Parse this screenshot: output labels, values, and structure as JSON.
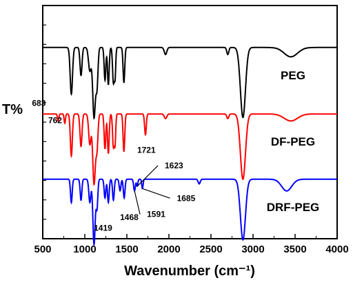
{
  "chart_data": {
    "type": "line",
    "xlabel": "Wavenumber (cm⁻¹)",
    "ylabel": "T%",
    "xlim": [
      500,
      4000
    ],
    "xticks": [
      "500",
      "1000",
      "1500",
      "2000",
      "2500",
      "3000",
      "3500",
      "4000"
    ],
    "grid": false,
    "legend": "none",
    "series": [
      {
        "name": "PEG",
        "color": "#000000",
        "baseline": 0.82,
        "peaks": [
          [
            840,
            0.2,
            14
          ],
          [
            955,
            0.12,
            12
          ],
          [
            1060,
            0.1,
            16
          ],
          [
            1110,
            0.3,
            16
          ],
          [
            1145,
            0.16,
            12
          ],
          [
            1240,
            0.14,
            10
          ],
          [
            1280,
            0.16,
            10
          ],
          [
            1340,
            0.15,
            10
          ],
          [
            1360,
            0.12,
            8
          ],
          [
            1465,
            0.15,
            10
          ],
          [
            1960,
            0.03,
            15
          ],
          [
            2700,
            0.03,
            12
          ],
          [
            2880,
            0.3,
            30
          ],
          [
            3450,
            0.04,
            80
          ]
        ]
      },
      {
        "name": "DF-PEG",
        "color": "#ff0000",
        "baseline": 0.535,
        "peaks": [
          [
            683,
            0.03,
            8
          ],
          [
            762,
            0.04,
            8
          ],
          [
            840,
            0.18,
            12
          ],
          [
            955,
            0.14,
            12
          ],
          [
            1060,
            0.13,
            14
          ],
          [
            1110,
            0.3,
            16
          ],
          [
            1145,
            0.14,
            12
          ],
          [
            1240,
            0.15,
            10
          ],
          [
            1280,
            0.17,
            10
          ],
          [
            1340,
            0.14,
            10
          ],
          [
            1360,
            0.12,
            8
          ],
          [
            1465,
            0.16,
            10
          ],
          [
            1721,
            0.09,
            10
          ],
          [
            1960,
            0.02,
            15
          ],
          [
            2700,
            0.02,
            12
          ],
          [
            2880,
            0.28,
            30
          ],
          [
            3450,
            0.03,
            80
          ]
        ]
      },
      {
        "name": "DRF-PEG",
        "color": "#0000ff",
        "baseline": 0.255,
        "peaks": [
          [
            840,
            0.1,
            10
          ],
          [
            955,
            0.09,
            10
          ],
          [
            1060,
            0.1,
            12
          ],
          [
            1110,
            0.28,
            14
          ],
          [
            1145,
            0.12,
            10
          ],
          [
            1240,
            0.08,
            10
          ],
          [
            1280,
            0.1,
            10
          ],
          [
            1340,
            0.09,
            10
          ],
          [
            1419,
            0.05,
            10
          ],
          [
            1468,
            0.08,
            10
          ],
          [
            1591,
            0.05,
            10
          ],
          [
            1623,
            0.03,
            8
          ],
          [
            1685,
            0.04,
            8
          ],
          [
            2360,
            0.02,
            12
          ],
          [
            2880,
            0.26,
            30
          ],
          [
            3400,
            0.05,
            60
          ]
        ]
      }
    ],
    "labels": {
      "PEG": "PEG",
      "DF-PEG": "DF-PEG",
      "DRF-PEG": "DRF-PEG"
    },
    "annotations": [
      {
        "text": "683",
        "series": "DF-PEG",
        "x": 683
      },
      {
        "text": "762",
        "series": "DF-PEG",
        "x": 762
      },
      {
        "text": "1721",
        "series": "DF-PEG",
        "x": 1721
      },
      {
        "text": "1623",
        "series": "DRF-PEG",
        "x": 1623
      },
      {
        "text": "1685",
        "series": "DRF-PEG",
        "x": 1685
      },
      {
        "text": "1468",
        "series": "DRF-PEG",
        "x": 1468
      },
      {
        "text": "1591",
        "series": "DRF-PEG",
        "x": 1591
      },
      {
        "text": "1419",
        "series": "DRF-PEG",
        "x": 1419
      }
    ]
  }
}
